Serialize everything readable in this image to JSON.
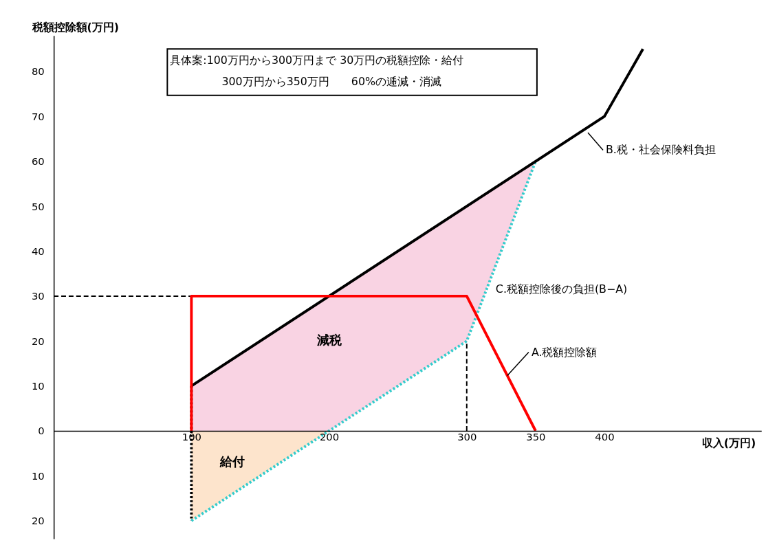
{
  "chart_data": {
    "type": "line",
    "xlabel": "収入(万円)",
    "ylabel": "税額控除額(万円)",
    "xlim": [
      0,
      514
    ],
    "ylim": [
      -24,
      88
    ],
    "xticks": [
      100,
      200,
      300,
      350,
      400
    ],
    "yticks": [
      {
        "value": -20,
        "label": "20"
      },
      {
        "value": -10,
        "label": "10"
      },
      0,
      10,
      20,
      30,
      40,
      50,
      60,
      70,
      80
    ],
    "grid": false,
    "series": [
      {
        "color": "#000000",
        "line_style": "dashed",
        "x": [
          0,
          100
        ],
        "values": [
          30,
          30
        ]
      },
      {
        "color": "#000000",
        "line_style": "dashed",
        "x": [
          300,
          300
        ],
        "values": [
          0,
          20
        ]
      },
      {
        "color": "#000000",
        "line_style": "dotted",
        "x": [
          100,
          100
        ],
        "values": [
          10,
          -20
        ]
      },
      {
        "name": "C.税額控除後の負担(B−A)",
        "color": "#33cccc",
        "line_style": "dotted",
        "x": [
          100,
          200,
          300,
          350
        ],
        "values": [
          -20,
          0,
          20,
          60
        ],
        "lower": [
          -20,
          0,
          20,
          60
        ],
        "upper": [
          10,
          30,
          50,
          60
        ]
      },
      {
        "name": "B.税・社会保険料負担",
        "color": "#000000",
        "line_style": "solid",
        "x": [
          100,
          400,
          428
        ],
        "values": [
          10,
          70,
          85
        ]
      },
      {
        "name": "A.税額控除額",
        "color": "#ff0000",
        "line_style": "solid",
        "x": [
          100,
          100,
          300,
          350
        ],
        "values": [
          0,
          30,
          30,
          0
        ]
      }
    ],
    "annotations": [
      "具体案:100万円から300万円まで 30万円の税額控除・給付",
      "300万円から350万円　　60%の逓減・消滅",
      "減税",
      "給付"
    ]
  }
}
